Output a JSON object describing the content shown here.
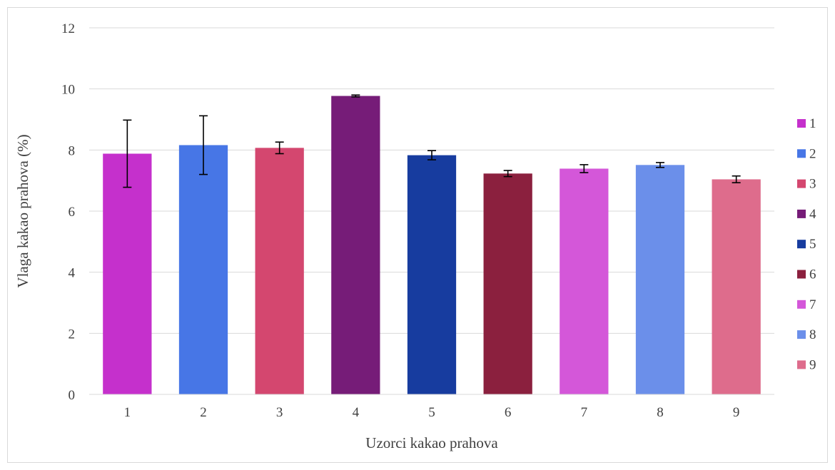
{
  "chart_data": {
    "type": "bar",
    "title": "",
    "xlabel": "Uzorci kakao prahova",
    "ylabel": "Vlaga kakao prahova (%)",
    "ylim": [
      0,
      12
    ],
    "yticks": [
      0,
      2,
      4,
      6,
      8,
      10,
      12
    ],
    "grid": true,
    "legend_position": "right",
    "categories": [
      "1",
      "2",
      "3",
      "4",
      "5",
      "6",
      "7",
      "8",
      "9"
    ],
    "values": [
      7.88,
      8.16,
      8.07,
      9.77,
      7.83,
      7.23,
      7.39,
      7.51,
      7.04
    ],
    "errors": [
      1.1,
      0.96,
      0.19,
      0.03,
      0.15,
      0.1,
      0.13,
      0.08,
      0.11
    ],
    "colors": [
      "#c530cc",
      "#4776e6",
      "#d4476f",
      "#761c78",
      "#173c9f",
      "#8b203e",
      "#d457d9",
      "#6b8fea",
      "#de6c8c"
    ],
    "legend": [
      "1",
      "2",
      "3",
      "4",
      "5",
      "6",
      "7",
      "8",
      "9"
    ]
  }
}
